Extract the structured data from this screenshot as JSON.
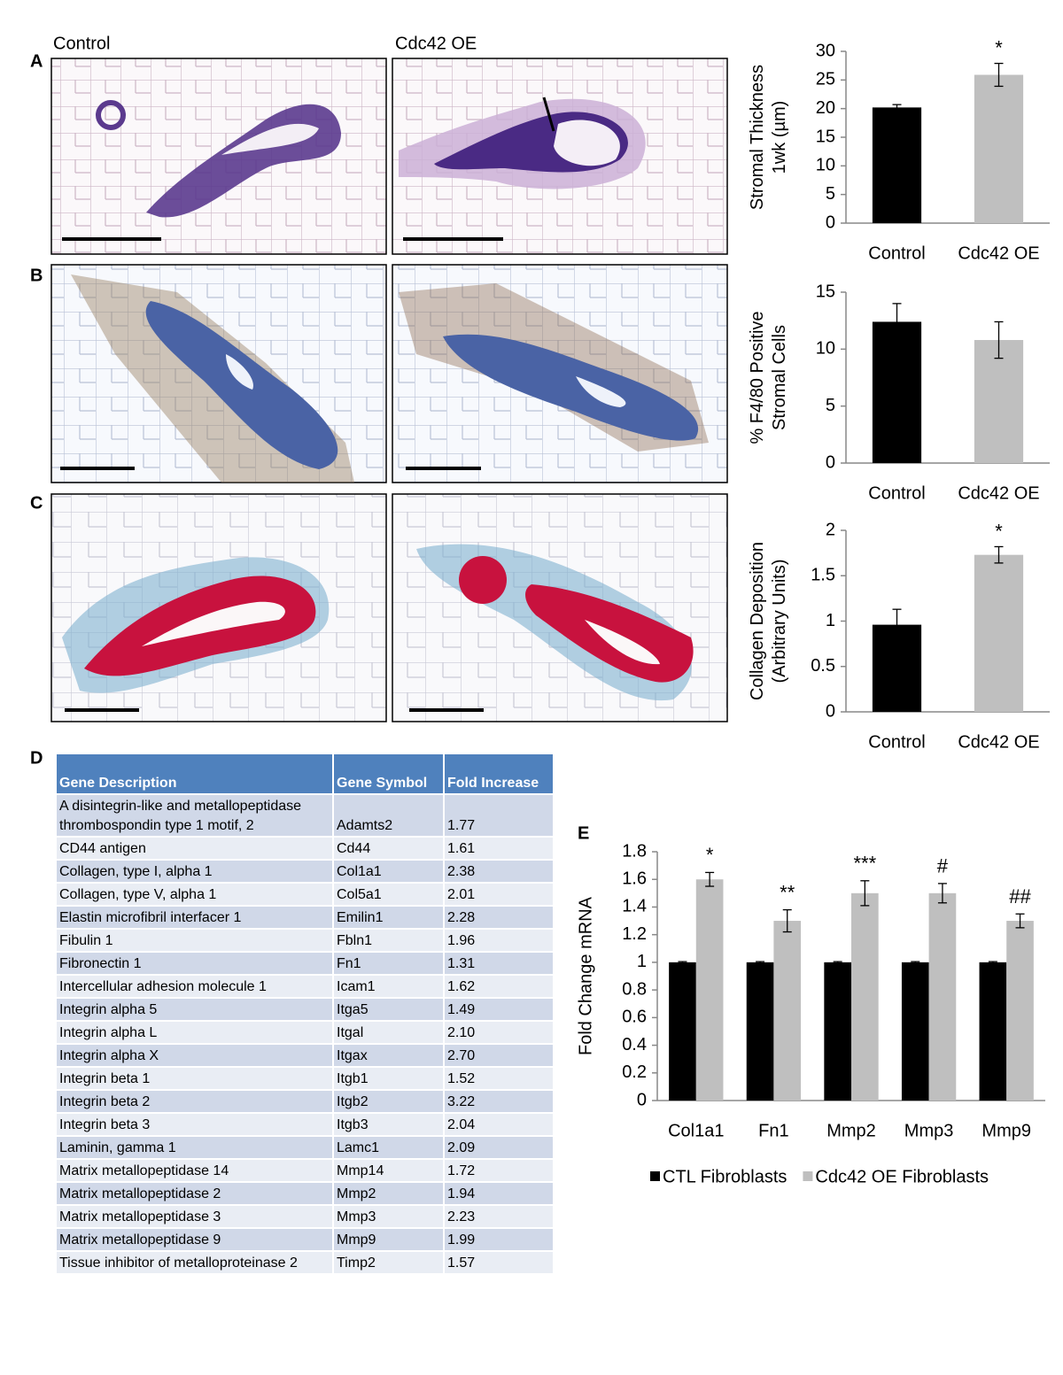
{
  "panel_labels": [
    "A",
    "B",
    "C",
    "D",
    "E"
  ],
  "image_labels": [
    "Control",
    "Cdc42 OE"
  ],
  "chart_data": [
    {
      "type": "bar",
      "ylabel": [
        "Stromal Thickness",
        "1wk (µm)"
      ],
      "categories": [
        "Control",
        "Cdc42 OE"
      ],
      "values": [
        20.2,
        25.9
      ],
      "errors": [
        0.5,
        2.0
      ],
      "colors": [
        "#000000",
        "#bfbfbf"
      ],
      "annotations": [
        null,
        "*"
      ],
      "ylim": [
        0,
        30
      ],
      "yticks": [
        0,
        5,
        10,
        15,
        20,
        25,
        30
      ]
    },
    {
      "type": "bar",
      "ylabel": [
        "% F4/80 Positive",
        "Stromal Cells"
      ],
      "categories": [
        "Control",
        "Cdc42 OE"
      ],
      "values": [
        12.4,
        10.8
      ],
      "errors": [
        1.6,
        1.6
      ],
      "colors": [
        "#000000",
        "#bfbfbf"
      ],
      "annotations": [
        null,
        null
      ],
      "ylim": [
        0,
        15
      ],
      "yticks": [
        0,
        5,
        10,
        15
      ]
    },
    {
      "type": "bar",
      "ylabel": [
        "Collagen Deposition",
        "(Arbitrary Units)"
      ],
      "categories": [
        "Control",
        "Cdc42 OE"
      ],
      "values": [
        0.96,
        1.73
      ],
      "errors": [
        0.17,
        0.09
      ],
      "colors": [
        "#000000",
        "#bfbfbf"
      ],
      "annotations": [
        null,
        "*"
      ],
      "ylim": [
        0,
        2
      ],
      "yticks": [
        0,
        0.5,
        1,
        1.5,
        2
      ]
    },
    {
      "type": "grouped_bar",
      "ylabel": [
        "Fold Change mRNA"
      ],
      "categories": [
        "Col1a1",
        "Fn1",
        "Mmp2",
        "Mmp3",
        "Mmp9"
      ],
      "series": [
        {
          "name": "CTL Fibroblasts",
          "color": "#000000",
          "values": [
            1,
            1,
            1,
            1,
            1
          ],
          "errors": [
            0.005,
            0.005,
            0.005,
            0.005,
            0.005
          ]
        },
        {
          "name": "Cdc42 OE Fibroblasts",
          "color": "#bfbfbf",
          "values": [
            1.6,
            1.3,
            1.5,
            1.5,
            1.3
          ],
          "errors": [
            0.05,
            0.08,
            0.09,
            0.07,
            0.05
          ]
        }
      ],
      "annotations": [
        "*",
        "**",
        "***",
        "#",
        "##"
      ],
      "ylim": [
        0,
        1.8
      ],
      "yticks": [
        0,
        0.2,
        0.4,
        0.6,
        0.8,
        1,
        1.2,
        1.4,
        1.6,
        1.8
      ]
    }
  ],
  "table": {
    "header": [
      "Gene Description",
      "Gene Symbol",
      "Fold Increase"
    ],
    "rows": [
      [
        "A disintegrin-like and metallopeptidase thrombospondin type 1 motif, 2",
        "Adamts2",
        "1.77"
      ],
      [
        "CD44 antigen",
        "Cd44",
        "1.61"
      ],
      [
        "Collagen, type I, alpha 1",
        "Col1a1",
        "2.38"
      ],
      [
        "Collagen, type V, alpha 1",
        "Col5a1",
        "2.01"
      ],
      [
        "Elastin microfibril interfacer 1",
        "Emilin1",
        "2.28"
      ],
      [
        "Fibulin 1",
        "Fbln1",
        "1.96"
      ],
      [
        "Fibronectin 1",
        "Fn1",
        "1.31"
      ],
      [
        "Intercellular adhesion molecule 1",
        "Icam1",
        "1.62"
      ],
      [
        "Integrin alpha 5",
        "Itga5",
        "1.49"
      ],
      [
        "Integrin alpha L",
        "Itgal",
        "2.10"
      ],
      [
        "Integrin alpha X",
        "Itgax",
        "2.70"
      ],
      [
        "Integrin beta 1",
        "Itgb1",
        "1.52"
      ],
      [
        "Integrin beta 2",
        "Itgb2",
        "3.22"
      ],
      [
        "Integrin beta 3",
        "Itgb3",
        "2.04"
      ],
      [
        "Laminin, gamma 1",
        "Lamc1",
        "2.09"
      ],
      [
        "Matrix metallopeptidase 14",
        "Mmp14",
        "1.72"
      ],
      [
        "Matrix metallopeptidase 2",
        "Mmp2",
        "1.94"
      ],
      [
        "Matrix metallopeptidase 3",
        "Mmp3",
        "2.23"
      ],
      [
        "Matrix metallopeptidase 9",
        "Mmp9",
        "1.99"
      ],
      [
        "Tissue inhibitor of metalloproteinase 2",
        "Timp2",
        "1.57"
      ]
    ]
  }
}
